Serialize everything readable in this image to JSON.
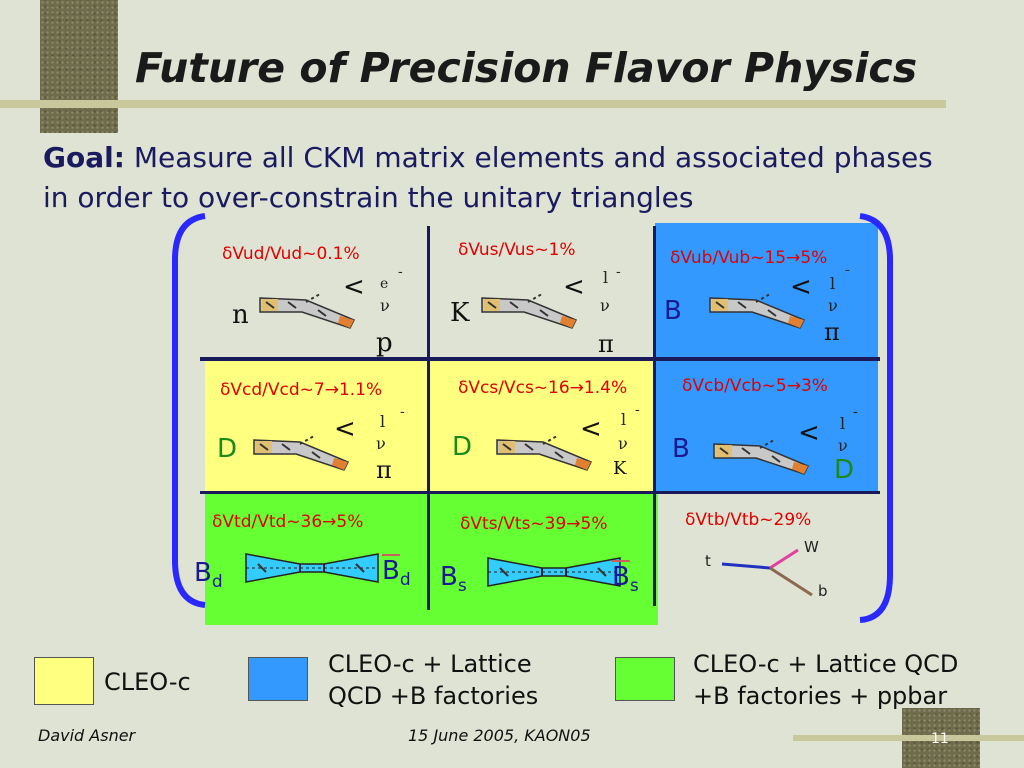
{
  "title": "Future of Precision Flavor Physics",
  "goal": {
    "label": "Goal:",
    "text": "Measure all CKM matrix elements and associated phases in order to over-constrain the unitary triangles"
  },
  "cells": {
    "vud": {
      "label": "δVud/Vud~0.1%",
      "initial": "n",
      "final": "p",
      "lep1": "e",
      "lep2": "ν",
      "minus": "-"
    },
    "vus": {
      "label": "δVus/Vus~1%",
      "initial": "K",
      "final": "π",
      "lep1": "l",
      "lep2": "ν",
      "minus": "-"
    },
    "vub": {
      "label": "δVub/Vub~15→5%",
      "initial": "B",
      "final": "π",
      "lep1": "l",
      "lep2": "ν",
      "minus": "-"
    },
    "vcd": {
      "label": "δVcd/Vcd~7→1.1%",
      "initial": "D",
      "final": "π",
      "lep1": "l",
      "lep2": "ν",
      "minus": "-"
    },
    "vcs": {
      "label": "δVcs/Vcs~16→1.4%",
      "initial": "D",
      "final": "K",
      "lep1": "l",
      "lep2": "ν",
      "minus": "-"
    },
    "vcb": {
      "label": "δVcb/Vcb~5→3%",
      "initial": "B",
      "final": "D",
      "lep1": "l",
      "lep2": "ν",
      "minus": "-"
    },
    "vtd": {
      "label": "δVtd/Vtd~36→5%",
      "left": "B",
      "left_sub": "d",
      "right": "B",
      "right_sub": "d"
    },
    "vts": {
      "label": "δVts/Vts~39→5%",
      "left": "B",
      "left_sub": "s",
      "right": "B",
      "right_sub": "s"
    },
    "vtb": {
      "label": "δVtb/Vtb~29%",
      "t": "t",
      "w": "W",
      "b": "b"
    }
  },
  "arrow_glyph": "<",
  "legend": {
    "yellow": {
      "text": "CLEO-c",
      "color": "#ffff80"
    },
    "blue": {
      "line1": "CLEO-c + Lattice",
      "line2": "QCD +B factories",
      "color": "#3399ff"
    },
    "green": {
      "line1": "CLEO-c + Lattice QCD",
      "line2": "+B factories + ppbar",
      "color": "#66ff33"
    }
  },
  "footer": {
    "author": "David Asner",
    "date": "15 June 2005, KAON05",
    "page": "11"
  }
}
